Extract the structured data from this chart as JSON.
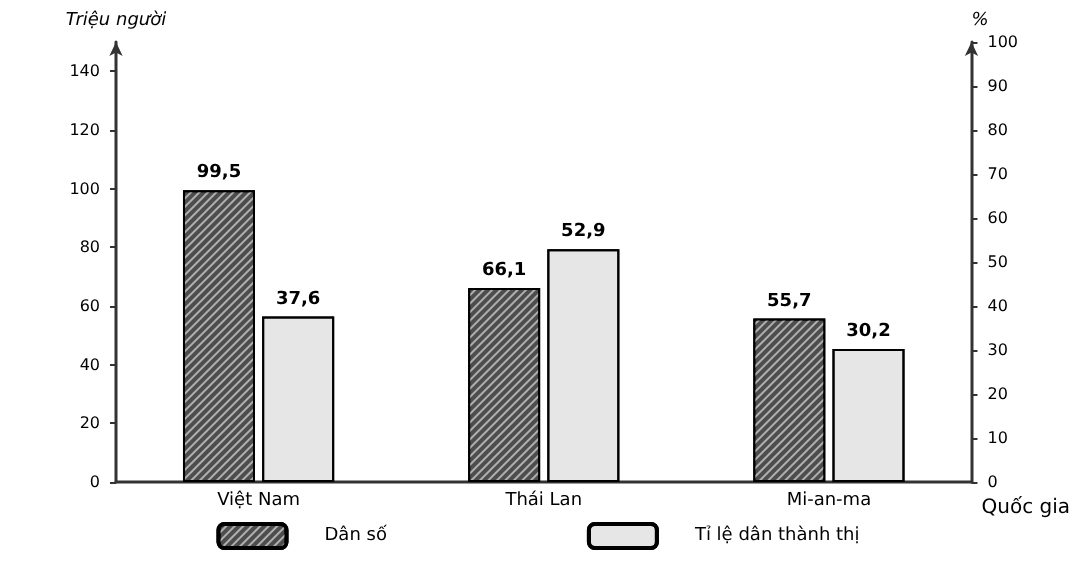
{
  "chart_data": {
    "type": "bar",
    "categories": [
      "Việt Nam",
      "Thái Lan",
      "Mi-an-ma"
    ],
    "ylabel": "Triệu người",
    "y2label": "%",
    "xlabel": "Quốc gia",
    "series": [
      {
        "name": "Dân số",
        "color": "#4d4d4d",
        "values": [
          99.5,
          66.1,
          55.7
        ],
        "value_labels": [
          "99,5",
          "66,1",
          "55,7"
        ]
      },
      {
        "name": "Tỉ lệ dân thành thị",
        "color": "#e6e6e6",
        "axis": "y2",
        "values": [
          37.6,
          52.9,
          30.2
        ],
        "value_labels": [
          "37,6",
          "52,9",
          "30,2"
        ]
      }
    ],
    "ylim": [
      0,
      150
    ],
    "yticks": [
      0,
      20,
      40,
      60,
      80,
      100,
      120,
      140
    ],
    "y2lim": [
      0,
      100
    ],
    "y2ticks": [
      0,
      10,
      20,
      30,
      40,
      50,
      60,
      70,
      80,
      90,
      100
    ],
    "grid": false,
    "legend": "bottom"
  }
}
